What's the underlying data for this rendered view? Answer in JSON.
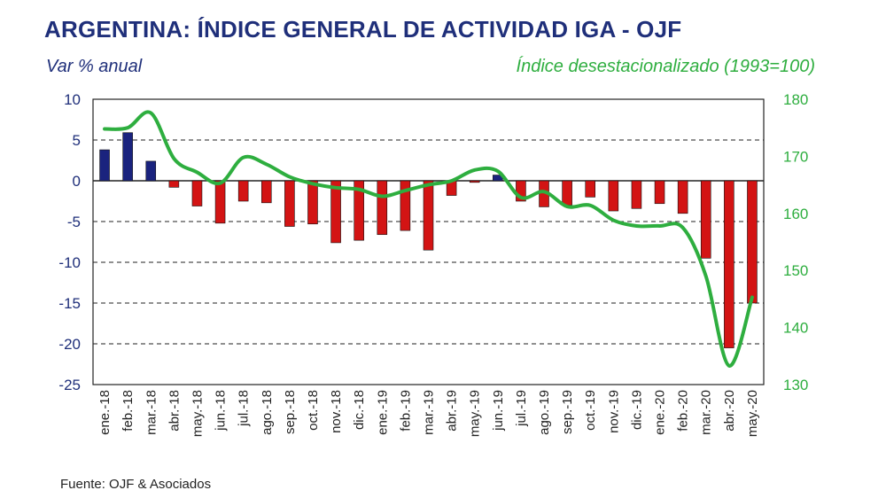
{
  "header": {
    "title": "ARGENTINA: ÍNDICE GENERAL DE ACTIVIDAD IGA - OJF",
    "left_subtitle": "Var % anual",
    "right_subtitle": "Índice desestacionalizado (1993=100)"
  },
  "footer": {
    "source": "Fuente: OJF & Asociados"
  },
  "colors": {
    "title": "#1f2f7a",
    "positive_bar": "#1a237e",
    "negative_bar": "#d31414",
    "line": "#2eae3f"
  },
  "chart_data": {
    "type": "bar",
    "categories": [
      "ene.-18",
      "feb.-18",
      "mar.-18",
      "abr.-18",
      "may.-18",
      "jun.-18",
      "jul.-18",
      "ago.-18",
      "sep.-18",
      "oct.-18",
      "nov.-18",
      "dic.-18",
      "ene.-19",
      "feb.-19",
      "mar.-19",
      "abr.-19",
      "may.-19",
      "jun.-19",
      "jul.-19",
      "ago.-19",
      "sep.-19",
      "oct.-19",
      "nov.-19",
      "dic.-19",
      "ene.-20",
      "feb.-20",
      "mar.-20",
      "abr.-20",
      "may.-20"
    ],
    "series": [
      {
        "name": "Var % anual",
        "axis": "left",
        "type": "bar",
        "values": [
          3.8,
          5.9,
          2.4,
          -0.8,
          -3.1,
          -5.2,
          -2.5,
          -2.7,
          -5.6,
          -5.3,
          -7.6,
          -7.3,
          -6.6,
          -6.1,
          -8.5,
          -1.8,
          -0.2,
          0.7,
          -2.5,
          -3.2,
          -3.0,
          -2.0,
          -3.7,
          -3.4,
          -2.8,
          -4.0,
          -9.5,
          -20.5,
          -15.0
        ]
      },
      {
        "name": "Índice desestacionalizado (1993=100)",
        "axis": "right",
        "type": "line",
        "values": [
          174.8,
          175.0,
          177.6,
          169.6,
          167.2,
          165.3,
          169.8,
          168.6,
          166.4,
          165.2,
          164.5,
          164.2,
          163.0,
          164.0,
          165.0,
          165.7,
          167.6,
          167.4,
          162.8,
          163.8,
          161.2,
          161.4,
          158.8,
          157.8,
          157.8,
          157.5,
          149.0,
          133.3,
          145.3
        ]
      }
    ],
    "y_left": {
      "min": -25,
      "max": 10,
      "step": 5,
      "ticks": [
        "10",
        "5",
        "0",
        "-5",
        "-10",
        "-15",
        "-20",
        "-25"
      ]
    },
    "y_right": {
      "min": 130,
      "max": 180,
      "step": 10,
      "ticks": [
        "180",
        "170",
        "160",
        "150",
        "140",
        "130"
      ]
    },
    "gridlines": "dashed horizontal"
  }
}
